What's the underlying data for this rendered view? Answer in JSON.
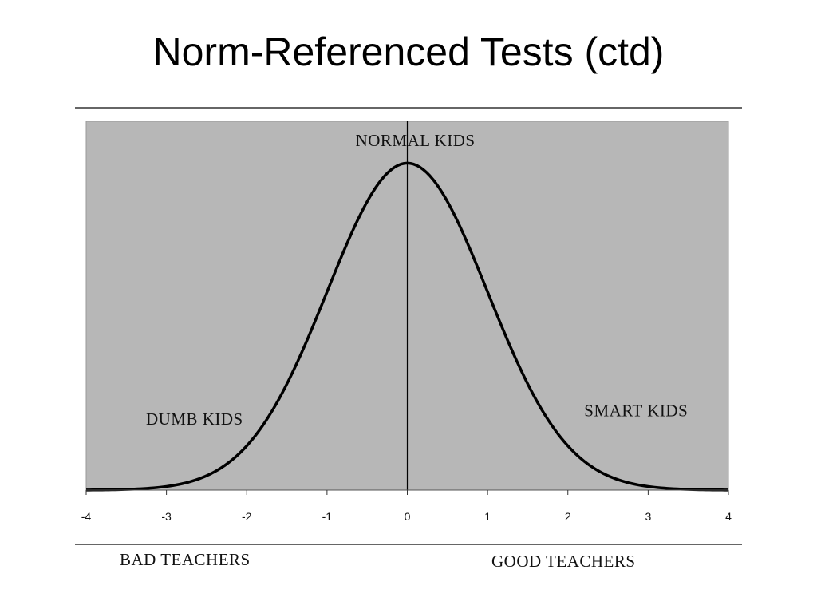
{
  "slide": {
    "title": "Norm-Referenced Tests (ctd)"
  },
  "colors": {
    "plot_background": "#b7b7b7",
    "curve": "#000000",
    "rule": "#333333"
  },
  "chart_data": {
    "type": "line",
    "distribution": "standard normal",
    "mean": 0,
    "sd": 1,
    "xlim": [
      -4,
      4
    ],
    "x_ticks": [
      -4,
      -3,
      -2,
      -1,
      0,
      1,
      2,
      3,
      4
    ],
    "x_tick_labels": [
      "-4",
      "-3",
      "-2",
      "-1",
      "0",
      "1",
      "2",
      "3",
      "4"
    ],
    "ylim": [
      0,
      0.45
    ],
    "grid": false,
    "legend": "none",
    "center_line_x": 0,
    "annotations": [
      {
        "text": "NORMAL KIDS",
        "x": 0.1,
        "y": 0.42
      },
      {
        "text": "DUMB KIDS",
        "x": -2.65,
        "y": 0.08
      },
      {
        "text": "SMART KIDS",
        "x": 2.85,
        "y": 0.09
      }
    ],
    "footer_labels": {
      "left": "BAD TEACHERS",
      "right": "GOOD TEACHERS"
    }
  }
}
